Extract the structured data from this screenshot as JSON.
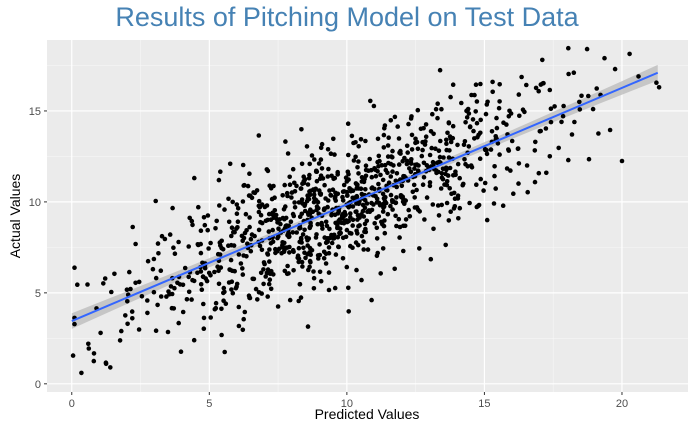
{
  "chart_data": {
    "type": "scatter",
    "title": "Results of Pitching Model on Test Data",
    "xlabel": "Predicted Values",
    "ylabel": "Actual Values",
    "xlim": [
      -0.9,
      22.4
    ],
    "ylim": [
      -0.45,
      18.9
    ],
    "x_ticks": [
      0,
      5,
      10,
      15,
      20
    ],
    "y_ticks": [
      0,
      5,
      10,
      15
    ],
    "x_tick_labels": [
      "0",
      "5",
      "10",
      "15",
      "20"
    ],
    "y_tick_labels": [
      "0",
      "5",
      "10",
      "15"
    ],
    "grid": true,
    "point_count": 1100,
    "trend_line": {
      "method": "linear",
      "x_start": 0,
      "y_start": 3.45,
      "x_end": 21.3,
      "y_end": 17.1,
      "confidence_band": true
    },
    "colors": {
      "panel": "#ebebeb",
      "grid": "#ffffff",
      "points": "#000000",
      "trend": "#3366ff",
      "band": "#bdbdbd",
      "title": "#4682b4"
    },
    "points": [
      [
        0.05,
        1.55
      ],
      [
        0.2,
        5.45
      ],
      [
        0.35,
        0.6
      ],
      [
        0.6,
        2.2
      ],
      [
        0.8,
        1.25
      ],
      [
        1.05,
        2.8
      ],
      [
        1.25,
        1.1
      ],
      [
        1.4,
        0.9
      ],
      [
        1.55,
        6.05
      ],
      [
        1.8,
        2.9
      ],
      [
        2.05,
        4.9
      ],
      [
        2.2,
        3.6
      ],
      [
        2.45,
        5.6
      ],
      [
        2.75,
        3.9
      ],
      [
        2.95,
        6.3
      ],
      [
        3.05,
        10.05
      ],
      [
        3.25,
        4.8
      ],
      [
        3.5,
        2.85
      ],
      [
        3.75,
        7.15
      ],
      [
        4.05,
        3.95
      ],
      [
        4.25,
        7.55
      ],
      [
        4.45,
        2.4
      ],
      [
        4.75,
        6.65
      ],
      [
        4.95,
        9.25
      ],
      [
        5.2,
        4.1
      ],
      [
        5.35,
        11.2
      ],
      [
        5.55,
        5.05
      ],
      [
        5.9,
        7.6
      ],
      [
        6.05,
        9.65
      ],
      [
        6.25,
        3.55
      ],
      [
        6.55,
        8.2
      ],
      [
        6.8,
        13.65
      ],
      [
        7.05,
        5.9
      ],
      [
        7.25,
        10.75
      ],
      [
        7.5,
        4.25
      ],
      [
        7.75,
        8.55
      ],
      [
        8.05,
        11.8
      ],
      [
        8.25,
        6.7
      ],
      [
        8.55,
        13.05
      ],
      [
        8.8,
        5.25
      ],
      [
        9.05,
        10.4
      ],
      [
        9.25,
        7.75
      ],
      [
        9.55,
        12.6
      ],
      [
        9.8,
        8.85
      ],
      [
        10.05,
        14.3
      ],
      [
        10.35,
        6.25
      ],
      [
        10.55,
        11.35
      ],
      [
        10.85,
        15.55
      ],
      [
        10.9,
        4.6
      ],
      [
        11.25,
        8.9
      ],
      [
        11.5,
        13.1
      ],
      [
        11.8,
        10.25
      ],
      [
        12.05,
        7.3
      ],
      [
        12.35,
        14.7
      ],
      [
        12.55,
        9.7
      ],
      [
        12.8,
        12.15
      ],
      [
        13.05,
        6.85
      ],
      [
        13.3,
        15.4
      ],
      [
        13.55,
        10.95
      ],
      [
        13.85,
        13.5
      ],
      [
        14.05,
        9.1
      ],
      [
        14.35,
        15.0
      ],
      [
        14.55,
        11.9
      ],
      [
        14.85,
        13.8
      ],
      [
        15.1,
        9.0
      ],
      [
        15.3,
        16.05
      ],
      [
        15.55,
        12.6
      ],
      [
        15.8,
        14.25
      ],
      [
        16.05,
        10.45
      ],
      [
        16.25,
        15.9
      ],
      [
        16.55,
        12.0
      ],
      [
        16.85,
        13.3
      ],
      [
        17.05,
        16.45
      ],
      [
        17.25,
        11.6
      ],
      [
        17.55,
        15.25
      ],
      [
        17.8,
        14.4
      ],
      [
        18.05,
        12.3
      ],
      [
        18.05,
        18.45
      ],
      [
        18.25,
        17.1
      ],
      [
        18.45,
        15.5
      ],
      [
        18.8,
        12.35
      ],
      [
        18.95,
        15.1
      ],
      [
        19.75,
        17.3
      ],
      [
        20.0,
        12.25
      ],
      [
        20.6,
        16.9
      ],
      [
        21.25,
        16.55
      ],
      [
        21.35,
        16.3
      ]
    ]
  }
}
